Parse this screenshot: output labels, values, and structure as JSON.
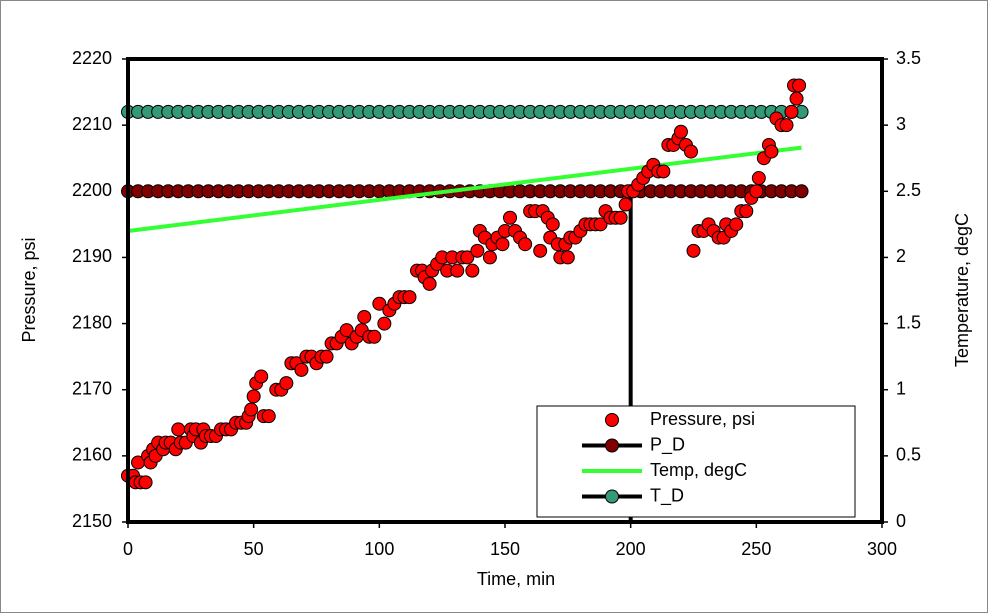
{
  "chart_data": {
    "type": "scatter",
    "x_label": "Time, min",
    "y_label": "Pressure, psi",
    "y2_label": "Temperature, degC",
    "xlim": [
      0,
      300
    ],
    "xticks": [
      0,
      50,
      100,
      150,
      200,
      250,
      300
    ],
    "ylim": [
      2150,
      2220
    ],
    "yticks": [
      2150,
      2160,
      2170,
      2180,
      2190,
      2200,
      2210,
      2220
    ],
    "y2lim": [
      0,
      3.5
    ],
    "y2ticks": [
      0,
      0.5,
      1,
      1.5,
      2,
      2.5,
      3,
      3.5
    ],
    "reference_lines": [
      {
        "x": 200,
        "y": [
          2150,
          2200
        ],
        "color": "#000000"
      }
    ],
    "series": [
      {
        "name": "Pressure, psi",
        "color": "#ff0000",
        "marker": true,
        "line": false,
        "x": [
          0,
          2,
          3,
          4,
          5,
          7,
          8,
          9,
          10,
          11,
          12,
          14,
          15,
          17,
          19,
          20,
          21,
          23,
          25,
          26,
          27,
          29,
          30,
          31,
          33,
          35,
          37,
          39,
          41,
          43,
          45,
          47,
          48,
          49,
          50,
          51,
          53,
          54,
          56,
          59,
          61,
          63,
          65,
          67,
          69,
          71,
          73,
          75,
          77,
          79,
          81,
          83,
          85,
          87,
          89,
          91,
          93,
          94,
          96,
          98,
          100,
          102,
          104,
          106,
          108,
          110,
          112,
          115,
          117,
          118,
          120,
          121,
          123,
          125,
          127,
          129,
          131,
          133,
          135,
          137,
          139,
          140,
          142,
          144,
          145,
          147,
          149,
          150,
          152,
          154,
          156,
          158,
          160,
          162,
          164,
          165,
          167,
          168,
          169,
          171,
          172,
          174,
          175,
          176,
          178,
          180,
          182,
          184,
          186,
          188,
          190,
          192,
          194,
          196,
          198,
          199,
          201,
          203,
          205,
          207,
          209,
          211,
          213,
          215,
          217,
          219,
          220,
          222,
          224,
          225,
          227,
          229,
          231,
          233,
          235,
          237,
          238,
          240,
          242,
          244,
          246,
          248,
          250,
          251,
          253,
          255,
          256,
          258,
          260,
          262,
          264,
          265,
          266,
          267
        ],
        "values": [
          2157,
          2157,
          2156,
          2159,
          2156,
          2156,
          2160,
          2159,
          2161,
          2160,
          2162,
          2161,
          2162,
          2162,
          2161,
          2164,
          2162,
          2162,
          2164,
          2163,
          2164,
          2162,
          2164,
          2163,
          2163,
          2163,
          2164,
          2164,
          2164,
          2165,
          2165,
          2165,
          2166,
          2167,
          2169,
          2171,
          2172,
          2166,
          2166,
          2170,
          2170,
          2171,
          2174,
          2174,
          2173,
          2175,
          2175,
          2174,
          2175,
          2175,
          2177,
          2177,
          2178,
          2179,
          2177,
          2178,
          2179,
          2181,
          2178,
          2178,
          2183,
          2180,
          2182,
          2183,
          2184,
          2184,
          2184,
          2188,
          2188,
          2187,
          2186,
          2188,
          2189,
          2190,
          2188,
          2190,
          2188,
          2190,
          2190,
          2188,
          2191,
          2194,
          2193,
          2190,
          2192,
          2193,
          2192,
          2194,
          2196,
          2194,
          2193,
          2192,
          2197,
          2197,
          2191,
          2197,
          2196,
          2193,
          2195,
          2192,
          2190,
          2192,
          2190,
          2193,
          2193,
          2194,
          2195,
          2195,
          2195,
          2195,
          2197,
          2196,
          2196,
          2196,
          2198,
          2200,
          2200,
          2201,
          2202,
          2203,
          2204,
          2203,
          2203,
          2207,
          2207,
          2208,
          2209,
          2207,
          2206,
          2191,
          2194,
          2194,
          2195,
          2194,
          2193,
          2193,
          2195,
          2194,
          2195,
          2197,
          2197,
          2199,
          2200,
          2202,
          2205,
          2207,
          2206,
          2211,
          2210,
          2210,
          2212,
          2216,
          2214,
          2216
        ]
      },
      {
        "name": "P_D",
        "color": "#800000",
        "line_color": "#000000",
        "marker": true,
        "line": true,
        "x": [
          0,
          4,
          8,
          12,
          16,
          20,
          24,
          28,
          32,
          36,
          40,
          44,
          48,
          52,
          56,
          60,
          64,
          68,
          72,
          76,
          80,
          84,
          88,
          92,
          96,
          100,
          104,
          108,
          112,
          116,
          120,
          124,
          128,
          132,
          136,
          140,
          144,
          148,
          152,
          156,
          160,
          164,
          168,
          172,
          176,
          180,
          184,
          188,
          192,
          196,
          200,
          204,
          208,
          212,
          216,
          220,
          224,
          228,
          232,
          236,
          240,
          244,
          248,
          252,
          256,
          260,
          264,
          268
        ],
        "values": [
          2200,
          2200,
          2200,
          2200,
          2200,
          2200,
          2200,
          2200,
          2200,
          2200,
          2200,
          2200,
          2200,
          2200,
          2200,
          2200,
          2200,
          2200,
          2200,
          2200,
          2200,
          2200,
          2200,
          2200,
          2200,
          2200,
          2200,
          2200,
          2200,
          2200,
          2200,
          2200,
          2200,
          2200,
          2200,
          2200,
          2200,
          2200,
          2200,
          2200,
          2200,
          2200,
          2200,
          2200,
          2200,
          2200,
          2200,
          2200,
          2200,
          2200,
          2200,
          2200,
          2200,
          2200,
          2200,
          2200,
          2200,
          2200,
          2200,
          2200,
          2200,
          2200,
          2200,
          2200,
          2200,
          2200,
          2200,
          2200
        ]
      },
      {
        "name": "Temp, degC",
        "color": "#33ff33",
        "axis": "y2",
        "marker": false,
        "line": true,
        "x": [
          0,
          268
        ],
        "values": [
          2.2,
          2.83
        ]
      },
      {
        "name": "T_D",
        "color": "#339977",
        "line_color": "#000000",
        "axis": "y2",
        "marker": true,
        "line": true,
        "x": [
          0,
          4,
          8,
          12,
          16,
          20,
          24,
          28,
          32,
          36,
          40,
          44,
          48,
          52,
          56,
          60,
          64,
          68,
          72,
          76,
          80,
          84,
          88,
          92,
          96,
          100,
          104,
          108,
          112,
          116,
          120,
          124,
          128,
          132,
          136,
          140,
          144,
          148,
          152,
          156,
          160,
          164,
          168,
          172,
          176,
          180,
          184,
          188,
          192,
          196,
          200,
          204,
          208,
          212,
          216,
          220,
          224,
          228,
          232,
          236,
          240,
          244,
          248,
          252,
          256,
          260,
          264,
          268
        ],
        "values": [
          3.1,
          3.1,
          3.1,
          3.1,
          3.1,
          3.1,
          3.1,
          3.1,
          3.1,
          3.1,
          3.1,
          3.1,
          3.1,
          3.1,
          3.1,
          3.1,
          3.1,
          3.1,
          3.1,
          3.1,
          3.1,
          3.1,
          3.1,
          3.1,
          3.1,
          3.1,
          3.1,
          3.1,
          3.1,
          3.1,
          3.1,
          3.1,
          3.1,
          3.1,
          3.1,
          3.1,
          3.1,
          3.1,
          3.1,
          3.1,
          3.1,
          3.1,
          3.1,
          3.1,
          3.1,
          3.1,
          3.1,
          3.1,
          3.1,
          3.1,
          3.1,
          3.1,
          3.1,
          3.1,
          3.1,
          3.1,
          3.1,
          3.1,
          3.1,
          3.1,
          3.1,
          3.1,
          3.1,
          3.1,
          3.1,
          3.1,
          3.1,
          3.1
        ]
      }
    ]
  }
}
